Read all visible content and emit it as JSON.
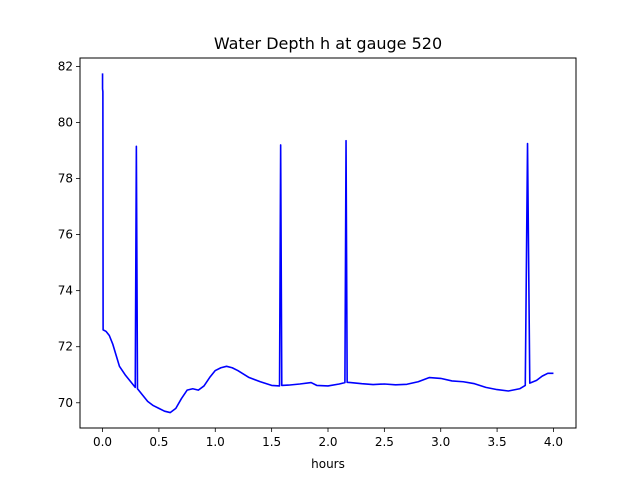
{
  "chart_data": {
    "type": "line",
    "title": "Water Depth h at gauge 520",
    "xlabel": "hours",
    "ylabel": "",
    "xlim": [
      -0.2,
      4.2
    ],
    "ylim": [
      69.1,
      82.3
    ],
    "xticks": [
      0.0,
      0.5,
      1.0,
      1.5,
      2.0,
      2.5,
      3.0,
      3.5,
      4.0
    ],
    "xtick_labels": [
      "0.0",
      "0.5",
      "1.0",
      "1.5",
      "2.0",
      "2.5",
      "3.0",
      "3.5",
      "4.0"
    ],
    "yticks": [
      70,
      72,
      74,
      76,
      78,
      80,
      82
    ],
    "ytick_labels": [
      "70",
      "72",
      "74",
      "76",
      "78",
      "80",
      "82"
    ],
    "grid": false,
    "series": [
      {
        "color": "#0000ff",
        "points": [
          [
            0.0,
            81.75
          ],
          [
            0.0,
            81.2
          ],
          [
            0.003,
            81.1
          ],
          [
            0.005,
            72.6
          ],
          [
            0.03,
            72.55
          ],
          [
            0.06,
            72.4
          ],
          [
            0.09,
            72.1
          ],
          [
            0.12,
            71.7
          ],
          [
            0.15,
            71.3
          ],
          [
            0.2,
            71.0
          ],
          [
            0.25,
            70.75
          ],
          [
            0.29,
            70.55
          ],
          [
            0.3,
            79.15
          ],
          [
            0.31,
            70.5
          ],
          [
            0.35,
            70.3
          ],
          [
            0.4,
            70.05
          ],
          [
            0.45,
            69.9
          ],
          [
            0.5,
            69.8
          ],
          [
            0.55,
            69.7
          ],
          [
            0.6,
            69.65
          ],
          [
            0.65,
            69.8
          ],
          [
            0.7,
            70.15
          ],
          [
            0.75,
            70.45
          ],
          [
            0.8,
            70.5
          ],
          [
            0.85,
            70.45
          ],
          [
            0.9,
            70.6
          ],
          [
            0.95,
            70.9
          ],
          [
            1.0,
            71.15
          ],
          [
            1.05,
            71.25
          ],
          [
            1.1,
            71.3
          ],
          [
            1.15,
            71.25
          ],
          [
            1.2,
            71.15
          ],
          [
            1.3,
            70.9
          ],
          [
            1.4,
            70.75
          ],
          [
            1.5,
            70.62
          ],
          [
            1.57,
            70.6
          ],
          [
            1.58,
            79.2
          ],
          [
            1.59,
            70.62
          ],
          [
            1.65,
            70.63
          ],
          [
            1.75,
            70.67
          ],
          [
            1.85,
            70.72
          ],
          [
            1.9,
            70.62
          ],
          [
            2.0,
            70.6
          ],
          [
            2.1,
            70.67
          ],
          [
            2.15,
            70.72
          ],
          [
            2.16,
            79.35
          ],
          [
            2.17,
            70.73
          ],
          [
            2.2,
            70.72
          ],
          [
            2.3,
            70.68
          ],
          [
            2.4,
            70.65
          ],
          [
            2.5,
            70.67
          ],
          [
            2.6,
            70.64
          ],
          [
            2.7,
            70.66
          ],
          [
            2.8,
            70.75
          ],
          [
            2.9,
            70.9
          ],
          [
            3.0,
            70.87
          ],
          [
            3.1,
            70.78
          ],
          [
            3.2,
            70.75
          ],
          [
            3.3,
            70.68
          ],
          [
            3.4,
            70.55
          ],
          [
            3.5,
            70.47
          ],
          [
            3.6,
            70.42
          ],
          [
            3.7,
            70.5
          ],
          [
            3.75,
            70.62
          ],
          [
            3.77,
            79.25
          ],
          [
            3.79,
            70.7
          ],
          [
            3.85,
            70.8
          ],
          [
            3.9,
            70.95
          ],
          [
            3.95,
            71.05
          ],
          [
            4.0,
            71.05
          ]
        ]
      }
    ]
  }
}
